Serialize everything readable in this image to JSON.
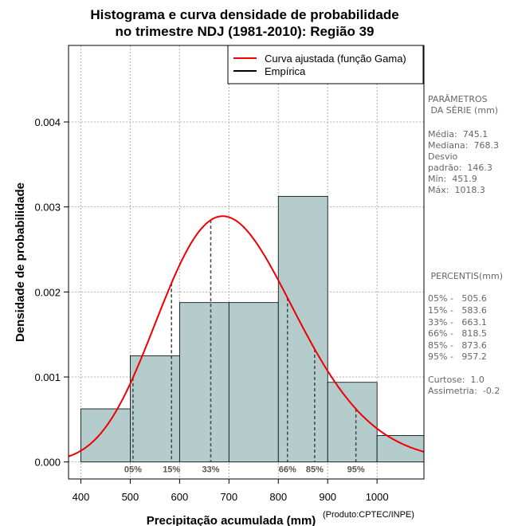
{
  "title_line1": "Histograma e curva densidade de probabilidade",
  "title_line2": "no trimestre NDJ (1981-2010): Região 39",
  "credit": "(Produto:CPTEC/INPE)",
  "params": {
    "heading1": "PARÂMETROS",
    "heading2": " DA SÉRIE (mm)",
    "media": "Média:  745.1",
    "mediana": "Mediana:  768.3",
    "desvio1": "Desvio",
    "desvio2": "padrão:  146.3",
    "min": "Mín:  451.9",
    "max": "Máx:  1018.3"
  },
  "percentis": {
    "heading": " PERCENTIS(mm)",
    "p05": "05% -   505.6",
    "p15": "15% -   583.6",
    "p33": "33% -   663.1",
    "p66": "66% -   818.5",
    "p85": "85% -   873.6",
    "p95": "95% -   957.2",
    "curtose": "Curtose:  1.0",
    "assimetria": "Assimetria:  -0.2"
  },
  "colors": {
    "bar_fill": "#b4cccc",
    "curve": "#ee0000",
    "grid": "#b0b0b0"
  },
  "chart_data": {
    "type": "bar",
    "title": "Histograma e curva densidade de probabilidade no trimestre NDJ (1981-2010): Região 39",
    "xlabel": "Precipitação acumulada (mm)",
    "ylabel": "Densidade de probabilidade",
    "xlim": [
      375,
      1095
    ],
    "ylim": [
      -0.0002,
      0.0049
    ],
    "xticks": [
      400,
      500,
      600,
      700,
      800,
      900,
      1000
    ],
    "xtick_labels": [
      "400",
      "500",
      "600",
      "700",
      "800",
      "900",
      "1000"
    ],
    "yticks": [
      0,
      0.001,
      0.002,
      0.003,
      0.004
    ],
    "ytick_labels": [
      "0.000",
      "0.001",
      "0.002",
      "0.003",
      "0.004"
    ],
    "grid": true,
    "legend_position": "top-right",
    "legend": [
      {
        "label": "Curva ajustada (função Gama)",
        "color": "#ee0000"
      },
      {
        "label": "Empírica",
        "color": "#000000"
      }
    ],
    "histogram": {
      "bin_edges": [
        400,
        500,
        600,
        700,
        800,
        900,
        1000,
        1100
      ],
      "densities": [
        0.000625,
        0.00125,
        0.001875,
        0.001875,
        0.003125,
        0.000937,
        0.000312
      ]
    },
    "gamma_curve": {
      "shape": 26,
      "scale": 27.5,
      "x_start": 375,
      "x_end": 1095
    },
    "percentiles": [
      {
        "label": "05%",
        "value": 505.6
      },
      {
        "label": "15%",
        "value": 583.6
      },
      {
        "label": "33%",
        "value": 663.1
      },
      {
        "label": "66%",
        "value": 818.5
      },
      {
        "label": "85%",
        "value": 873.6
      },
      {
        "label": "95%",
        "value": 957.2
      }
    ]
  }
}
